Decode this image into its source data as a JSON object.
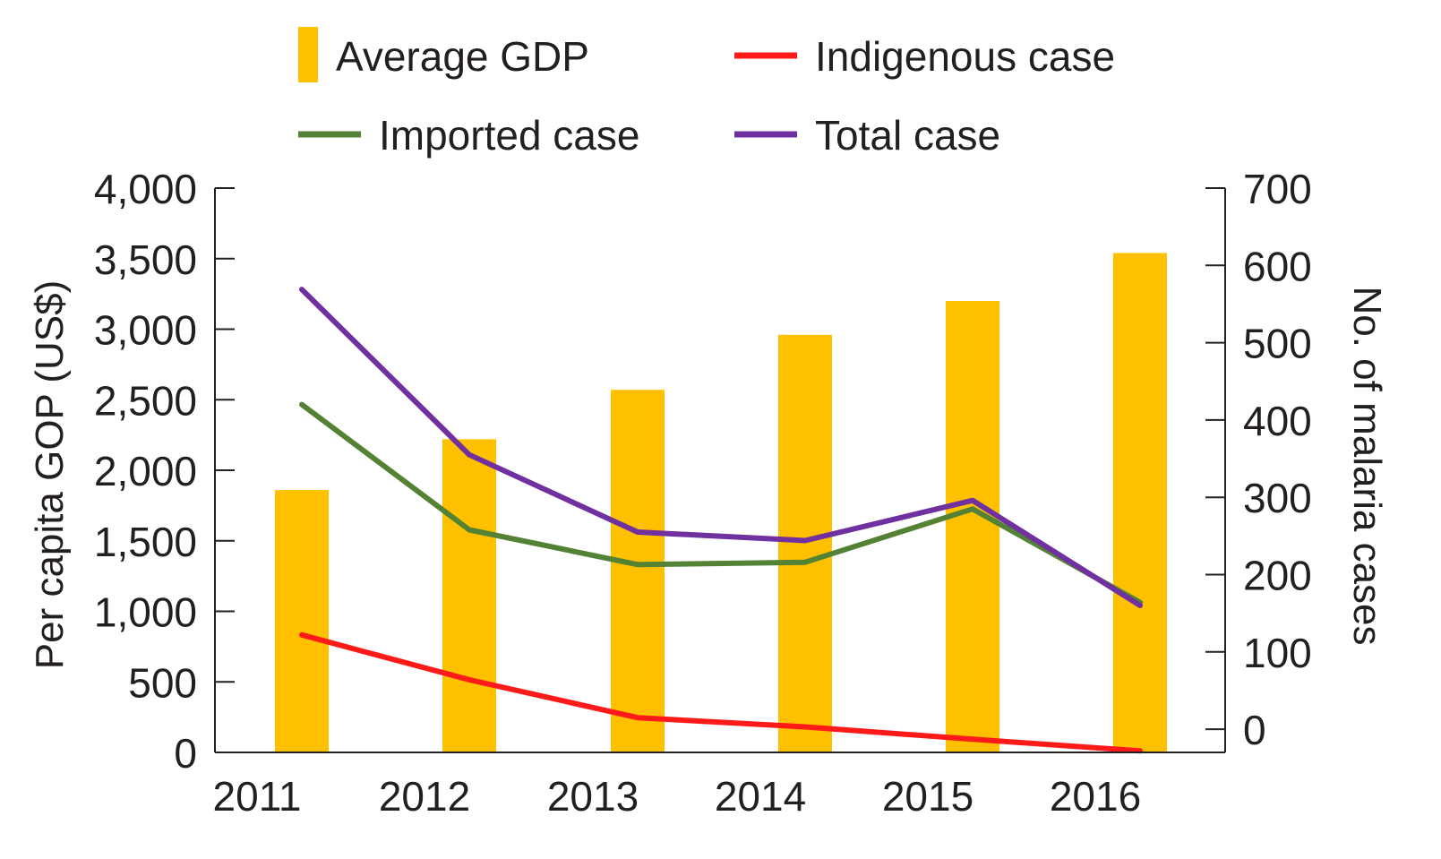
{
  "chart_data": {
    "type": "bar",
    "title": "",
    "categories": [
      "2011",
      "2012",
      "2013",
      "2014",
      "2015",
      "2016"
    ],
    "xlabel": "",
    "y_left": {
      "label": "Per capita GOP (US$)",
      "range": [
        0,
        4000
      ],
      "ticks": [
        0,
        500,
        1000,
        1500,
        2000,
        2500,
        3000,
        3500,
        4000
      ],
      "tick_labels": [
        "0",
        "500",
        "1,000",
        "1,500",
        "2,000",
        "2,500",
        "3,000",
        "3,500",
        "4,000"
      ]
    },
    "y_right": {
      "label": "No. of malaria cases",
      "range": [
        -30,
        700
      ],
      "ticks": [
        0,
        100,
        200,
        300,
        400,
        500,
        600,
        700
      ],
      "tick_labels": [
        "0",
        "100",
        "200",
        "300",
        "400",
        "500",
        "600",
        "700"
      ]
    },
    "series": [
      {
        "name": "Average GDP",
        "kind": "bar",
        "axis": "left",
        "color": "#ffc000",
        "values": [
          1860,
          2220,
          2570,
          2960,
          3200,
          3540
        ]
      },
      {
        "name": "Indigenous case",
        "kind": "line",
        "axis": "right",
        "color": "#ff1a1a",
        "values": [
          122,
          64,
          15,
          3,
          -13,
          -28
        ]
      },
      {
        "name": "Imported case",
        "kind": "line",
        "axis": "right",
        "color": "#548235",
        "values": [
          420,
          258,
          213,
          216,
          285,
          164
        ]
      },
      {
        "name": "Total case",
        "kind": "line",
        "axis": "right",
        "color": "#7030a0",
        "values": [
          569,
          355,
          255,
          244,
          296,
          160
        ]
      }
    ],
    "legend": {
      "placement": "top",
      "items": [
        {
          "label": "Average GDP",
          "marker": "bar",
          "color": "#ffc000"
        },
        {
          "label": "Indigenous case",
          "marker": "line",
          "color": "#ff1a1a"
        },
        {
          "label": "Imported case",
          "marker": "line",
          "color": "#548235"
        },
        {
          "label": "Total case",
          "marker": "line",
          "color": "#7030a0"
        }
      ]
    },
    "grid": false
  }
}
